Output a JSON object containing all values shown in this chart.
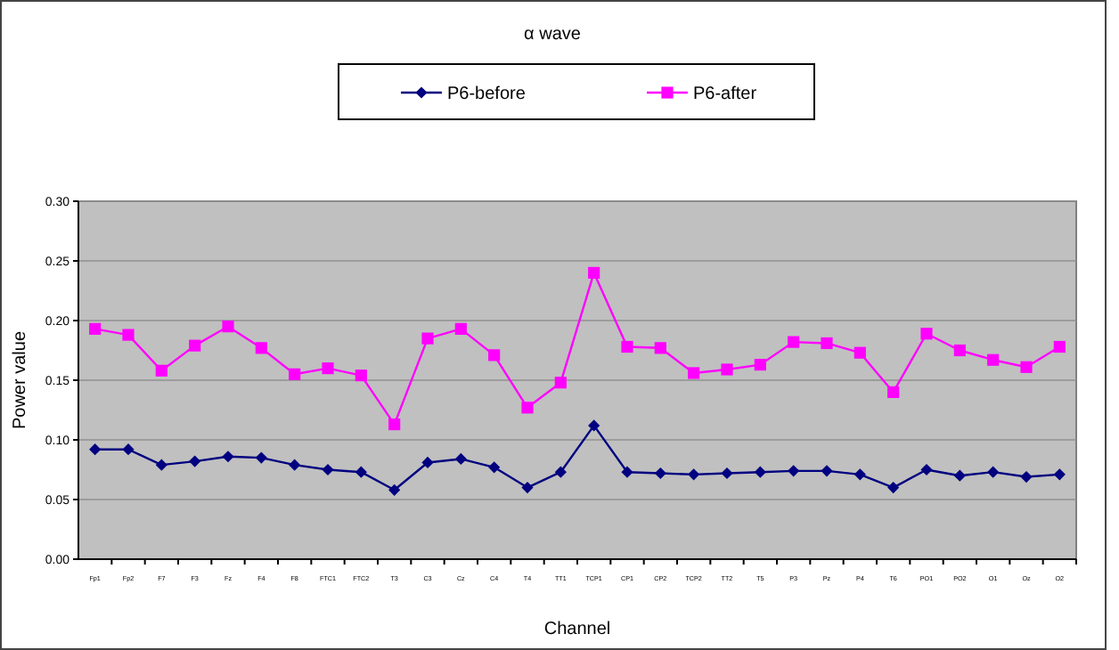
{
  "chart_data": {
    "type": "line",
    "title": "α wave",
    "xlabel": "Channel",
    "ylabel": "Power value",
    "categories": [
      "Fp1",
      "Fp2",
      "F7",
      "F3",
      "Fz",
      "F4",
      "F8",
      "FTC1",
      "FTC2",
      "T3",
      "C3",
      "Cz",
      "C4",
      "T4",
      "TT1",
      "TCP1",
      "CP1",
      "CP2",
      "TCP2",
      "TT2",
      "T5",
      "P3",
      "Pz",
      "P4",
      "T6",
      "PO1",
      "PO2",
      "O1",
      "Oz",
      "O2"
    ],
    "series": [
      {
        "name": "P6-before",
        "color": "#000080",
        "marker": "diamond",
        "values": [
          0.092,
          0.092,
          0.079,
          0.082,
          0.086,
          0.085,
          0.079,
          0.075,
          0.073,
          0.058,
          0.081,
          0.084,
          0.077,
          0.06,
          0.073,
          0.112,
          0.073,
          0.072,
          0.071,
          0.072,
          0.073,
          0.074,
          0.074,
          0.071,
          0.06,
          0.075,
          0.07,
          0.073,
          0.069,
          0.071
        ]
      },
      {
        "name": "P6-after",
        "color": "#ff00ff",
        "marker": "square",
        "values": [
          0.193,
          0.188,
          0.158,
          0.179,
          0.195,
          0.177,
          0.155,
          0.16,
          0.154,
          0.113,
          0.185,
          0.193,
          0.171,
          0.127,
          0.148,
          0.24,
          0.178,
          0.177,
          0.156,
          0.159,
          0.163,
          0.182,
          0.181,
          0.173,
          0.14,
          0.189,
          0.175,
          0.167,
          0.161,
          0.178
        ]
      }
    ],
    "ylim": [
      0,
      0.3
    ],
    "yticks": [
      {
        "value": 0,
        "label": "0.00"
      },
      {
        "value": 0.05,
        "label": "0.05"
      },
      {
        "value": 0.1,
        "label": "0.10"
      },
      {
        "value": 0.15,
        "label": "0.15"
      },
      {
        "value": 0.2,
        "label": "0.20"
      },
      {
        "value": 0.25,
        "label": "0.25"
      },
      {
        "value": 0.3,
        "label": "0.30"
      }
    ],
    "grid": "y",
    "legend": "top"
  }
}
